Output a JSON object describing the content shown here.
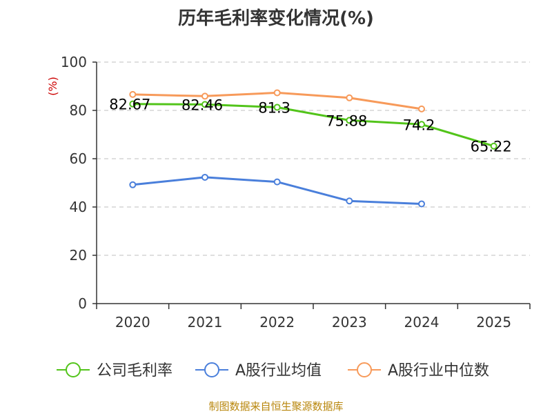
{
  "chart_data": {
    "type": "line",
    "title": "历年毛利率变化情况(%)",
    "ylabel": "(%)",
    "xlabel": "",
    "categories": [
      "2020",
      "2021",
      "2022",
      "2023",
      "2024",
      "2025"
    ],
    "ylim": [
      0,
      100
    ],
    "yticks": [
      0,
      20,
      40,
      60,
      80,
      100
    ],
    "grid": true,
    "legend_position": "bottom",
    "series": [
      {
        "name": "公司毛利率",
        "color": "#52c41a",
        "values": [
          82.67,
          82.46,
          81.3,
          75.88,
          74.2,
          65.22
        ],
        "labels": [
          "82.67",
          "82.46",
          "81.3",
          "75.88",
          "74.2",
          "65.22"
        ]
      },
      {
        "name": "A股行业均值",
        "color": "#4a7fdb",
        "values": [
          49.2,
          52.3,
          50.4,
          42.5,
          41.3,
          null
        ]
      },
      {
        "name": "A股行业中位数",
        "color": "#f79a5a",
        "values": [
          86.6,
          85.9,
          87.3,
          85.2,
          80.6,
          null
        ]
      }
    ]
  },
  "source": "制图数据来自恒生聚源数据库"
}
